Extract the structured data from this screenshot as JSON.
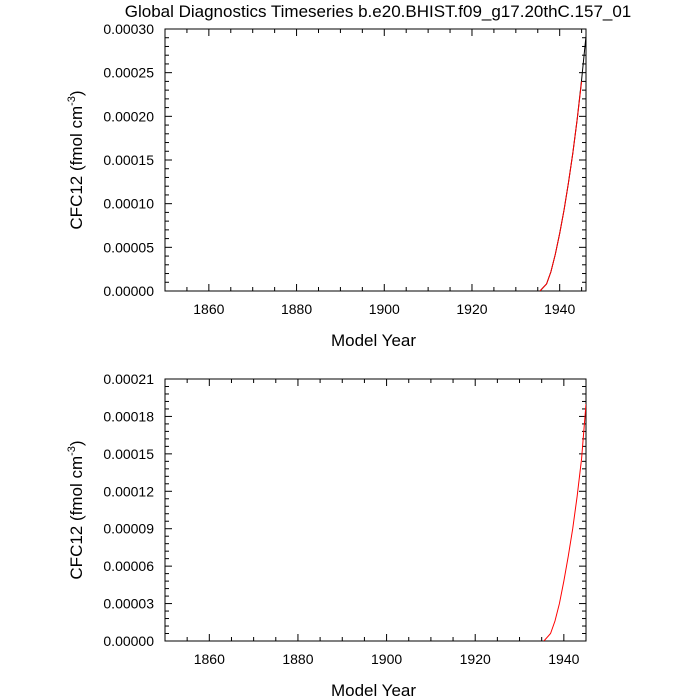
{
  "figure": {
    "title": "Global Diagnostics Timeseries b.e20.BHIST.f09_g17.20thC.157_01"
  },
  "chart_data": [
    {
      "type": "line",
      "xlabel": "Model Year",
      "ylabel_main": "CFC12 (fmol cm",
      "ylabel_sup": "-3",
      "ylabel_close": ")",
      "xlim": [
        1850,
        1946
      ],
      "ylim": [
        0,
        0.0003
      ],
      "xticks": [
        1860,
        1880,
        1900,
        1920,
        1940
      ],
      "xtick_labels": [
        "1860",
        "1880",
        "1900",
        "1920",
        "1940"
      ],
      "yticks": [
        0,
        5e-05,
        0.0001,
        0.00015,
        0.0002,
        0.00025,
        0.0003
      ],
      "ytick_labels": [
        "0.00000",
        "0.00005",
        "0.00010",
        "0.00015",
        "0.00020",
        "0.00025",
        "0.00030"
      ],
      "series": [
        {
          "color": "#000000",
          "x": [
            1935.5,
            1937,
            1938,
            1939,
            1940,
            1941,
            1942,
            1943,
            1944,
            1945,
            1946
          ],
          "y": [
            0,
            8e-06,
            2.2e-05,
            4.2e-05,
            6.6e-05,
            9.3e-05,
            0.000124,
            0.000158,
            0.000197,
            0.000242,
            0.000292
          ]
        },
        {
          "color": "#ff0000",
          "x": [
            1935.5,
            1937,
            1938,
            1939,
            1940,
            1941,
            1942,
            1943,
            1944,
            1945
          ],
          "y": [
            0,
            8e-06,
            2.2e-05,
            4.2e-05,
            6.6e-05,
            9.3e-05,
            0.000124,
            0.000158,
            0.000197,
            0.00024
          ]
        }
      ]
    },
    {
      "type": "line",
      "xlabel": "Model Year",
      "ylabel_main": "CFC12 (fmol cm",
      "ylabel_sup": "-3",
      "ylabel_close": ")",
      "xlim": [
        1850,
        1945
      ],
      "ylim": [
        0,
        0.00021
      ],
      "xticks": [
        1860,
        1880,
        1900,
        1920,
        1940
      ],
      "xtick_labels": [
        "1860",
        "1880",
        "1900",
        "1920",
        "1940"
      ],
      "yticks": [
        0,
        3e-05,
        6e-05,
        9e-05,
        0.00012,
        0.00015,
        0.00018,
        0.00021
      ],
      "ytick_labels": [
        "0.00000",
        "0.00003",
        "0.00006",
        "0.00009",
        "0.00012",
        "0.00015",
        "0.00018",
        "0.00021"
      ],
      "series": [
        {
          "color": "#ff0000",
          "x": [
            1935.5,
            1937,
            1938,
            1939,
            1940,
            1941,
            1942,
            1943,
            1944,
            1945
          ],
          "y": [
            0,
            6e-06,
            1.6e-05,
            3e-05,
            4.8e-05,
            6.8e-05,
            9e-05,
            0.000116,
            0.000146,
            0.00019
          ]
        }
      ]
    }
  ]
}
